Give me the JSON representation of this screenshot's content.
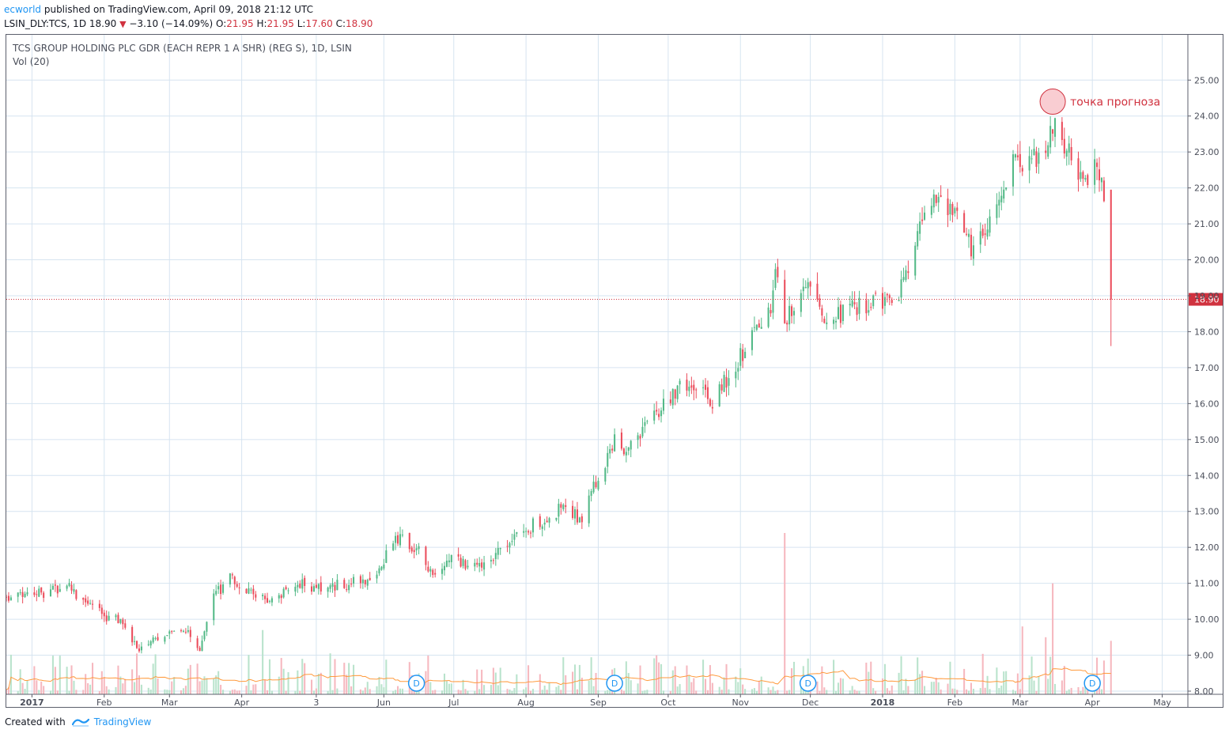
{
  "header": {
    "author": "ecworld",
    "published_text": " published on TradingView.com, April 09, 2018 21:12 UTC"
  },
  "quote": {
    "symbol": "LSIN_DLY:TCS, 1D",
    "last": "18.90",
    "change": "−3.10 (−14.09%)",
    "o_label": "O:",
    "o": "21.95",
    "h_label": "H:",
    "h": "21.95",
    "l_label": "L:",
    "l": "17.60",
    "c_label": "C:",
    "c": "18.90"
  },
  "legend": {
    "title": "TCS GROUP HOLDING PLC GDR (EACH REPR 1 A SHR) (REG S), 1D, LSIN",
    "volume": "Vol (20)"
  },
  "footer": {
    "created_with": "Created with",
    "brand": "TradingView"
  },
  "colors": {
    "up": "#53b987",
    "down": "#eb4d5c",
    "up_volume": "#b9e3cc",
    "down_volume": "#f6b8bf",
    "volume_ma": "#ff9a3c",
    "grid": "#d6e4f0",
    "price_line": "#d0323f",
    "accent": "#2196f3"
  },
  "chart_data": {
    "type": "candlestick",
    "title": "TCS GROUP HOLDING PLC GDR (EACH REPR 1 A SHR) (REG S), 1D, LSIN",
    "ylim": [
      8.0,
      25.6
    ],
    "price_ticks": [
      "8.00",
      "9.00",
      "10.00",
      "11.00",
      "12.00",
      "13.00",
      "14.00",
      "15.00",
      "16.00",
      "17.00",
      "18.00",
      "19.00",
      "20.00",
      "21.00",
      "22.00",
      "23.00",
      "24.00",
      "25.00"
    ],
    "x_ticks": [
      "2017",
      "Feb",
      "Mar",
      "Apr",
      "3",
      "Jun",
      "Jul",
      "Aug",
      "Sep",
      "Oct",
      "Nov",
      "Dec",
      "2018",
      "Feb",
      "Mar",
      "Apr",
      "May"
    ],
    "x_tick_dates": [
      "2017-01-01",
      "2017-02-01",
      "2017-03-01",
      "2017-04-01",
      "2017-05-03",
      "2017-06-01",
      "2017-07-01",
      "2017-08-01",
      "2017-09-01",
      "2017-10-01",
      "2017-11-01",
      "2017-12-01",
      "2018-01-01",
      "2018-02-01",
      "2018-03-01",
      "2018-04-01",
      "2018-05-01"
    ],
    "bold_ticks": [
      "2017",
      "2018"
    ],
    "date_range": [
      "2016-12-21",
      "2018-05-12"
    ],
    "dividend_label": "D",
    "dividend_dates": [
      "2017-06-15",
      "2017-09-08",
      "2017-11-30",
      "2018-04-01"
    ],
    "last_price": "18.90",
    "annotation": {
      "text": "точка прогноза",
      "date": "2018-03-15",
      "price": 24.4
    },
    "price_path": [
      [
        "2016-12-21",
        10.6
      ],
      [
        "2017-01-05",
        10.7
      ],
      [
        "2017-01-16",
        10.9
      ],
      [
        "2017-01-26",
        10.3
      ],
      [
        "2017-02-08",
        9.9
      ],
      [
        "2017-02-16",
        9.2
      ],
      [
        "2017-02-27",
        9.5
      ],
      [
        "2017-03-07",
        9.8
      ],
      [
        "2017-03-14",
        9.1
      ],
      [
        "2017-03-20",
        10.6
      ],
      [
        "2017-03-27",
        11.2
      ],
      [
        "2017-04-06",
        10.7
      ],
      [
        "2017-04-13",
        10.5
      ],
      [
        "2017-04-24",
        11.0
      ],
      [
        "2017-05-03",
        10.9
      ],
      [
        "2017-05-17",
        11.0
      ],
      [
        "2017-05-28",
        11.1
      ],
      [
        "2017-06-01",
        11.6
      ],
      [
        "2017-06-06",
        12.3
      ],
      [
        "2017-06-15",
        12.0
      ],
      [
        "2017-06-22",
        11.1
      ],
      [
        "2017-07-01",
        11.7
      ],
      [
        "2017-07-12",
        11.4
      ],
      [
        "2017-07-20",
        11.9
      ],
      [
        "2017-07-28",
        12.4
      ],
      [
        "2017-08-07",
        12.7
      ],
      [
        "2017-08-16",
        13.1
      ],
      [
        "2017-08-25",
        12.8
      ],
      [
        "2017-09-01",
        14.0
      ],
      [
        "2017-09-08",
        15.0
      ],
      [
        "2017-09-14",
        14.7
      ],
      [
        "2017-09-22",
        15.4
      ],
      [
        "2017-09-29",
        15.9
      ],
      [
        "2017-10-05",
        16.4
      ],
      [
        "2017-10-12",
        16.6
      ],
      [
        "2017-10-20",
        16.1
      ],
      [
        "2017-10-27",
        16.8
      ],
      [
        "2017-11-02",
        17.4
      ],
      [
        "2017-11-08",
        18.1
      ],
      [
        "2017-11-13",
        18.4
      ],
      [
        "2017-11-16",
        19.6
      ],
      [
        "2017-11-20",
        18.3
      ],
      [
        "2017-11-26",
        18.9
      ],
      [
        "2017-12-02",
        19.2
      ],
      [
        "2017-12-08",
        18.4
      ],
      [
        "2017-12-18",
        18.6
      ],
      [
        "2017-12-28",
        18.8
      ],
      [
        "2018-01-08",
        19.1
      ],
      [
        "2018-01-13",
        19.7
      ],
      [
        "2018-01-18",
        21.1
      ],
      [
        "2018-01-26",
        21.9
      ],
      [
        "2018-02-01",
        21.2
      ],
      [
        "2018-02-08",
        20.3
      ],
      [
        "2018-02-16",
        20.9
      ],
      [
        "2018-02-21",
        21.9
      ],
      [
        "2018-02-25",
        22.8
      ],
      [
        "2018-03-01",
        22.7
      ],
      [
        "2018-03-07",
        22.8
      ],
      [
        "2018-03-12",
        23.2
      ],
      [
        "2018-03-15",
        23.8
      ],
      [
        "2018-03-22",
        23.1
      ],
      [
        "2018-03-28",
        22.0
      ],
      [
        "2018-04-02",
        22.6
      ],
      [
        "2018-04-06",
        21.9
      ]
    ],
    "last_candle": {
      "date": "2018-04-09",
      "open": 21.95,
      "high": 21.95,
      "low": 17.6,
      "close": 18.9
    },
    "volume_spikes": [
      [
        "2017-11-20",
        12.4
      ],
      [
        "2018-03-15",
        11.0
      ],
      [
        "2018-03-02",
        9.8
      ],
      [
        "2017-04-10",
        9.7
      ],
      [
        "2018-03-12",
        9.5
      ],
      [
        "2018-04-09",
        9.4
      ]
    ]
  }
}
